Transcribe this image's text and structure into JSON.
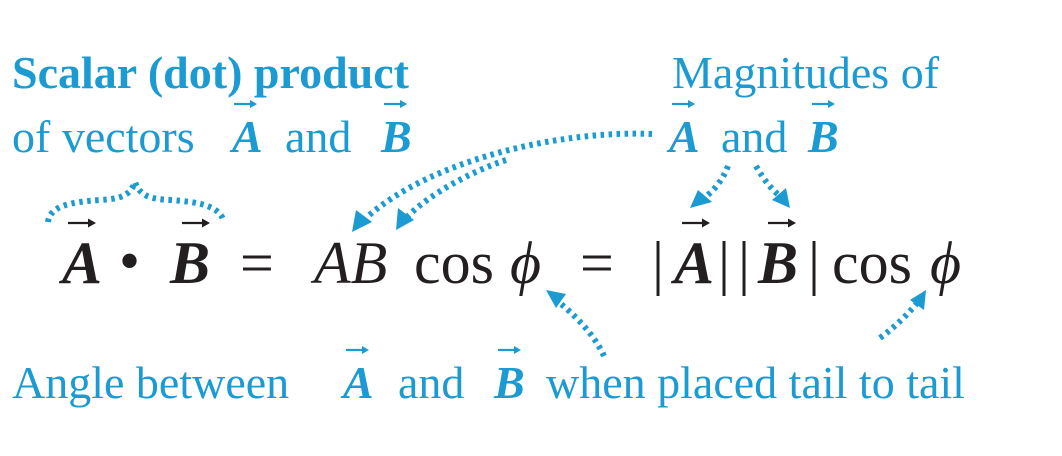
{
  "labels": {
    "scalar_title": "Scalar (dot) product",
    "scalar_of_vectors": "of vectors",
    "and": "and",
    "magnitudes_of": "Magnitudes of",
    "angle_between": "Angle between",
    "placed_tail": "when placed tail to tail",
    "vec_a": "A",
    "vec_b": "B"
  },
  "equation": {
    "vec_a": "A",
    "dot": "•",
    "vec_b": "B",
    "equals": "=",
    "ab": "AB",
    "cos": "cos",
    "phi": "ϕ",
    "bar": "|"
  },
  "colors": {
    "annotation": "#1b9bd1",
    "equation": "#231f20"
  }
}
